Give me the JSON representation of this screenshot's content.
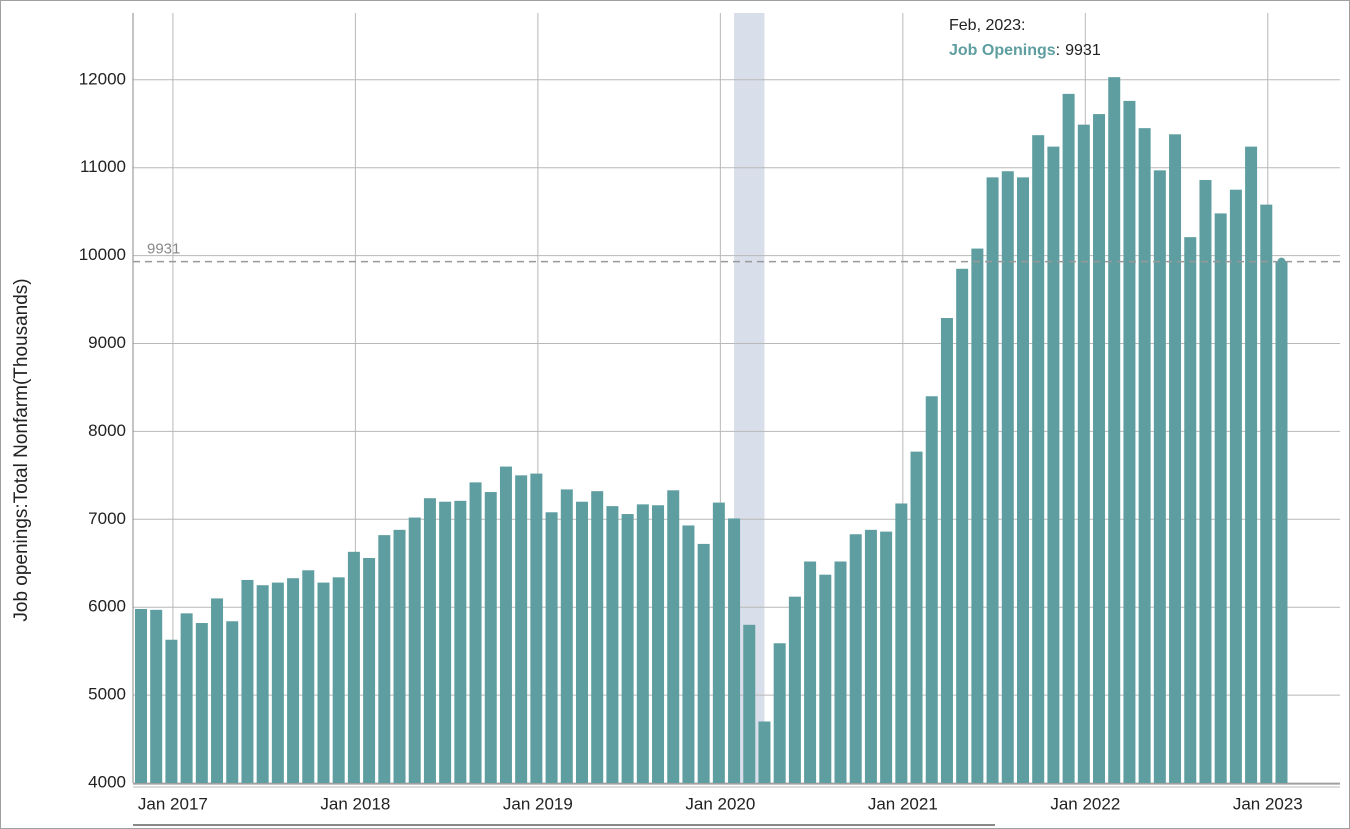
{
  "chart_data": {
    "type": "bar",
    "y_axis_label": "Job openings:Total Nonfarm(Thousands)",
    "categories": [
      null,
      null,
      "Jan 2017",
      null,
      null,
      null,
      null,
      null,
      null,
      null,
      null,
      null,
      null,
      null,
      "Jan 2018",
      null,
      null,
      null,
      null,
      null,
      null,
      null,
      null,
      null,
      null,
      null,
      "Jan 2019",
      null,
      null,
      null,
      null,
      null,
      null,
      null,
      null,
      null,
      null,
      null,
      "Jan 2020",
      null,
      null,
      null,
      null,
      null,
      null,
      null,
      null,
      null,
      null,
      null,
      "Jan 2021",
      null,
      null,
      null,
      null,
      null,
      null,
      null,
      null,
      null,
      null,
      null,
      "Jan 2022",
      null,
      null,
      null,
      null,
      null,
      null,
      null,
      null,
      null,
      null,
      null,
      "Jan 2023",
      null
    ],
    "series": [
      {
        "name": "Job Openings",
        "color": "#5f9ea0",
        "values": [
          5980,
          5970,
          5630,
          5930,
          5820,
          6100,
          5840,
          6310,
          6250,
          6280,
          6330,
          6420,
          6280,
          6340,
          6630,
          6560,
          6820,
          6880,
          7020,
          7240,
          7200,
          7210,
          7420,
          7310,
          7600,
          7500,
          7520,
          7080,
          7340,
          7200,
          7320,
          7150,
          7060,
          7170,
          7160,
          7330,
          6930,
          6720,
          7190,
          7010,
          5800,
          4700,
          5590,
          6120,
          6520,
          6370,
          6520,
          6830,
          6880,
          6860,
          7180,
          7770,
          8400,
          9290,
          9850,
          10080,
          10890,
          10960,
          10890,
          11370,
          11240,
          11840,
          11490,
          11610,
          12030,
          11760,
          11450,
          10970,
          11380,
          10210,
          10860,
          10480,
          10750,
          11240,
          10580,
          9931
        ]
      }
    ],
    "shaded": [
      39,
      41
    ],
    "shade_color": "#d9dfea",
    "reference_line": {
      "value": 9931
    },
    "tooltip": {
      "title": "Feb, 2023:",
      "separator": ":"
    },
    "ylim": [
      4000,
      12760
    ],
    "yticks": [
      4000,
      5000,
      6000,
      7000,
      8000,
      9000,
      10000,
      11000,
      12000
    ],
    "grid": true
  }
}
